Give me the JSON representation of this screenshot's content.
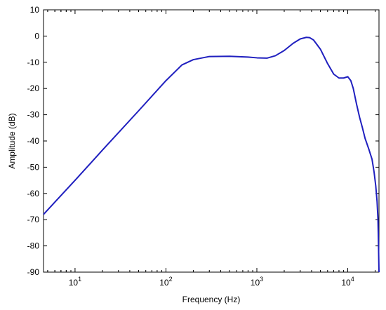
{
  "chart_data": {
    "type": "line",
    "xlabel": "Frequency (Hz)",
    "ylabel": "Amplitude (dB)",
    "xscale": "log",
    "xlim": [
      4.5,
      22050
    ],
    "ylim": [
      -90,
      10
    ],
    "grid": false,
    "y_ticks": [
      10,
      0,
      -10,
      -20,
      -30,
      -40,
      -50,
      -60,
      -70,
      -80,
      -90
    ],
    "y_tick_labels": [
      "10",
      "0",
      "-10",
      "-20",
      "-30",
      "-40",
      "-50",
      "-60",
      "-70",
      "-80",
      "-90"
    ],
    "x_ticks": [
      {
        "value": 10,
        "base": "10",
        "exp": "1"
      },
      {
        "value": 100,
        "base": "10",
        "exp": "2"
      },
      {
        "value": 1000,
        "base": "10",
        "exp": "3"
      },
      {
        "value": 10000,
        "base": "10",
        "exp": "4"
      }
    ],
    "series": [
      {
        "color": "#1f1fbf",
        "x": [
          4.5,
          10,
          20,
          50,
          100,
          150,
          200,
          300,
          500,
          800,
          1000,
          1300,
          1600,
          2000,
          2500,
          3000,
          3500,
          3800,
          4200,
          5000,
          6000,
          7000,
          8000,
          9000,
          10000,
          10800,
          11500,
          12500,
          13500,
          14500,
          15500,
          17000,
          18500,
          19500,
          20300,
          21000,
          21500,
          21800,
          22050
        ],
        "y": [
          -68,
          -55,
          -43.5,
          -28.5,
          -17,
          -11,
          -9,
          -7.8,
          -7.7,
          -8,
          -8.3,
          -8.4,
          -7.5,
          -5.5,
          -2.8,
          -1.1,
          -0.5,
          -0.6,
          -1.5,
          -5,
          -10.5,
          -14.5,
          -16,
          -16,
          -15.5,
          -17,
          -20,
          -26,
          -31,
          -35,
          -39,
          -43,
          -47,
          -52,
          -57,
          -63,
          -70,
          -80,
          -90
        ]
      }
    ]
  }
}
